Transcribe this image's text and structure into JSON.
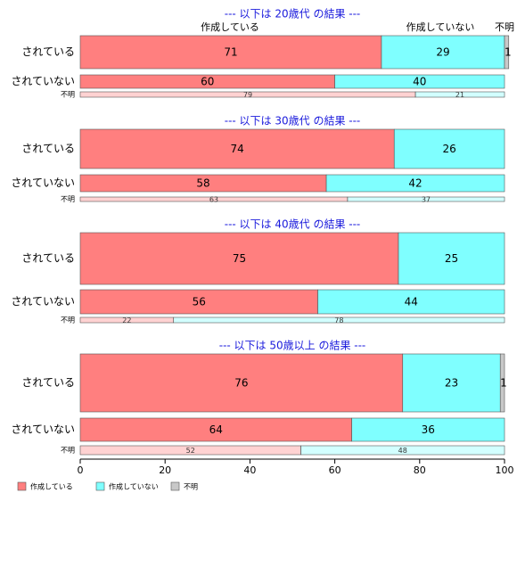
{
  "chart_data": {
    "type": "bar",
    "orientation": "horizontal",
    "stacked": "percent",
    "xlim": [
      0,
      100
    ],
    "x_ticks": [
      "0",
      "20",
      "40",
      "60",
      "80",
      "100"
    ],
    "series_names": [
      "作成している",
      "作成していない",
      "不明"
    ],
    "colors": {
      "作成している": "#ff7f7f",
      "作成していない": "#7fffff",
      "不明": "#c8c8c8",
      "title": "#1a1adc"
    },
    "top_labels": [
      "作成している",
      "作成していない",
      "不明"
    ],
    "legend": {
      "position": "bottom-left",
      "items": [
        "作成している",
        "作成していない",
        "不明"
      ]
    },
    "groups": [
      {
        "title": "--- 以下は 20歳代 の結果 ---",
        "rows": [
          {
            "label": "されている",
            "values": [
              71,
              29,
              1
            ],
            "shown": [
              "71",
              "29",
              "1"
            ]
          },
          {
            "label": "されていない",
            "values": [
              60,
              40,
              0
            ],
            "shown": [
              "60",
              "40",
              ""
            ]
          },
          {
            "label": "不明",
            "values": [
              79,
              21,
              0
            ],
            "shown": [
              "79",
              "21",
              ""
            ]
          }
        ]
      },
      {
        "title": "--- 以下は 30歳代 の結果 ---",
        "rows": [
          {
            "label": "されている",
            "values": [
              74,
              26,
              0
            ],
            "shown": [
              "74",
              "26",
              ""
            ]
          },
          {
            "label": "されていない",
            "values": [
              58,
              42,
              0
            ],
            "shown": [
              "58",
              "42",
              ""
            ]
          },
          {
            "label": "不明",
            "values": [
              63,
              37,
              0
            ],
            "shown": [
              "63",
              "37",
              ""
            ]
          }
        ]
      },
      {
        "title": "--- 以下は 40歳代 の結果 ---",
        "rows": [
          {
            "label": "されている",
            "values": [
              75,
              25,
              0
            ],
            "shown": [
              "75",
              "25",
              ""
            ]
          },
          {
            "label": "されていない",
            "values": [
              56,
              44,
              0
            ],
            "shown": [
              "56",
              "44",
              ""
            ]
          },
          {
            "label": "不明",
            "values": [
              22,
              78,
              0
            ],
            "shown": [
              "22",
              "78",
              ""
            ]
          }
        ]
      },
      {
        "title": "--- 以下は 50歳以上 の結果 ---",
        "rows": [
          {
            "label": "されている",
            "values": [
              76,
              23,
              1
            ],
            "shown": [
              "76",
              "23",
              "1"
            ]
          },
          {
            "label": "されていない",
            "values": [
              64,
              36,
              0
            ],
            "shown": [
              "64",
              "36",
              ""
            ]
          },
          {
            "label": "不明",
            "values": [
              52,
              48,
              0
            ],
            "shown": [
              "52",
              "48",
              ""
            ]
          }
        ]
      }
    ]
  }
}
